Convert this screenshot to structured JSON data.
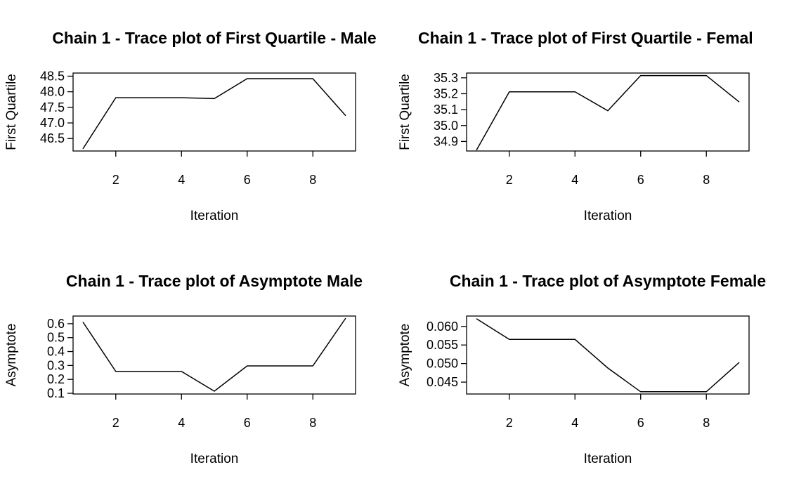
{
  "chart_data": [
    {
      "type": "line",
      "title": "Chain 1 - Trace plot of First Quartile - Male",
      "xlabel": "Iteration",
      "ylabel": "First Quartile",
      "xlim": [
        0.7,
        9.3
      ],
      "ylim": [
        46.1,
        48.6
      ],
      "xticks": [
        2,
        4,
        6,
        8
      ],
      "xtick_labels": [
        "2",
        "4",
        "6",
        "8"
      ],
      "yticks": [
        46.5,
        47.0,
        47.5,
        48.0,
        48.5
      ],
      "ytick_labels": [
        "46.5",
        "47.0",
        "47.5",
        "48.0",
        "48.5"
      ],
      "x": [
        1,
        2,
        3,
        4,
        5,
        6,
        7,
        8,
        9
      ],
      "y": [
        46.17,
        47.81,
        47.81,
        47.81,
        47.78,
        48.42,
        48.42,
        48.42,
        47.23
      ]
    },
    {
      "type": "line",
      "title": "Chain 1 - Trace plot of First Quartile - Femal",
      "xlabel": "Iteration",
      "ylabel": "First Quartile",
      "xlim": [
        0.7,
        9.3
      ],
      "ylim": [
        34.84,
        35.33
      ],
      "xticks": [
        2,
        4,
        6,
        8
      ],
      "xtick_labels": [
        "2",
        "4",
        "6",
        "8"
      ],
      "yticks": [
        34.9,
        35.0,
        35.1,
        35.2,
        35.3
      ],
      "ytick_labels": [
        "34.9",
        "35.0",
        "35.1",
        "35.2",
        "35.3"
      ],
      "x": [
        1,
        2,
        3,
        4,
        5,
        6,
        7,
        8,
        9
      ],
      "y": [
        34.845,
        35.212,
        35.212,
        35.212,
        35.093,
        35.314,
        35.314,
        35.314,
        35.148
      ]
    },
    {
      "type": "line",
      "title": "Chain 1 - Trace plot of Asymptote Male",
      "xlabel": "Iteration",
      "ylabel": "Asymptote",
      "xlim": [
        0.7,
        9.3
      ],
      "ylim": [
        0.095,
        0.655
      ],
      "xticks": [
        2,
        4,
        6,
        8
      ],
      "xtick_labels": [
        "2",
        "4",
        "6",
        "8"
      ],
      "yticks": [
        0.1,
        0.2,
        0.3,
        0.4,
        0.5,
        0.6
      ],
      "ytick_labels": [
        "0.1",
        "0.2",
        "0.3",
        "0.4",
        "0.5",
        "0.6"
      ],
      "x": [
        1,
        2,
        3,
        4,
        5,
        6,
        7,
        8,
        9
      ],
      "y": [
        0.612,
        0.257,
        0.257,
        0.257,
        0.115,
        0.297,
        0.297,
        0.297,
        0.64
      ]
    },
    {
      "type": "line",
      "title": "Chain 1 - Trace plot of Asymptote Female",
      "xlabel": "Iteration",
      "ylabel": "Asymptote",
      "xlim": [
        0.7,
        9.3
      ],
      "ylim": [
        0.0418,
        0.0628
      ],
      "xticks": [
        2,
        4,
        6,
        8
      ],
      "xtick_labels": [
        "2",
        "4",
        "6",
        "8"
      ],
      "yticks": [
        0.045,
        0.05,
        0.055,
        0.06
      ],
      "ytick_labels": [
        "0.045",
        "0.050",
        "0.055",
        "0.060"
      ],
      "x": [
        1,
        2,
        3,
        4,
        5,
        6,
        7,
        8,
        9
      ],
      "y": [
        0.0621,
        0.0565,
        0.0565,
        0.0565,
        0.0488,
        0.0424,
        0.0424,
        0.0424,
        0.0503
      ]
    }
  ]
}
